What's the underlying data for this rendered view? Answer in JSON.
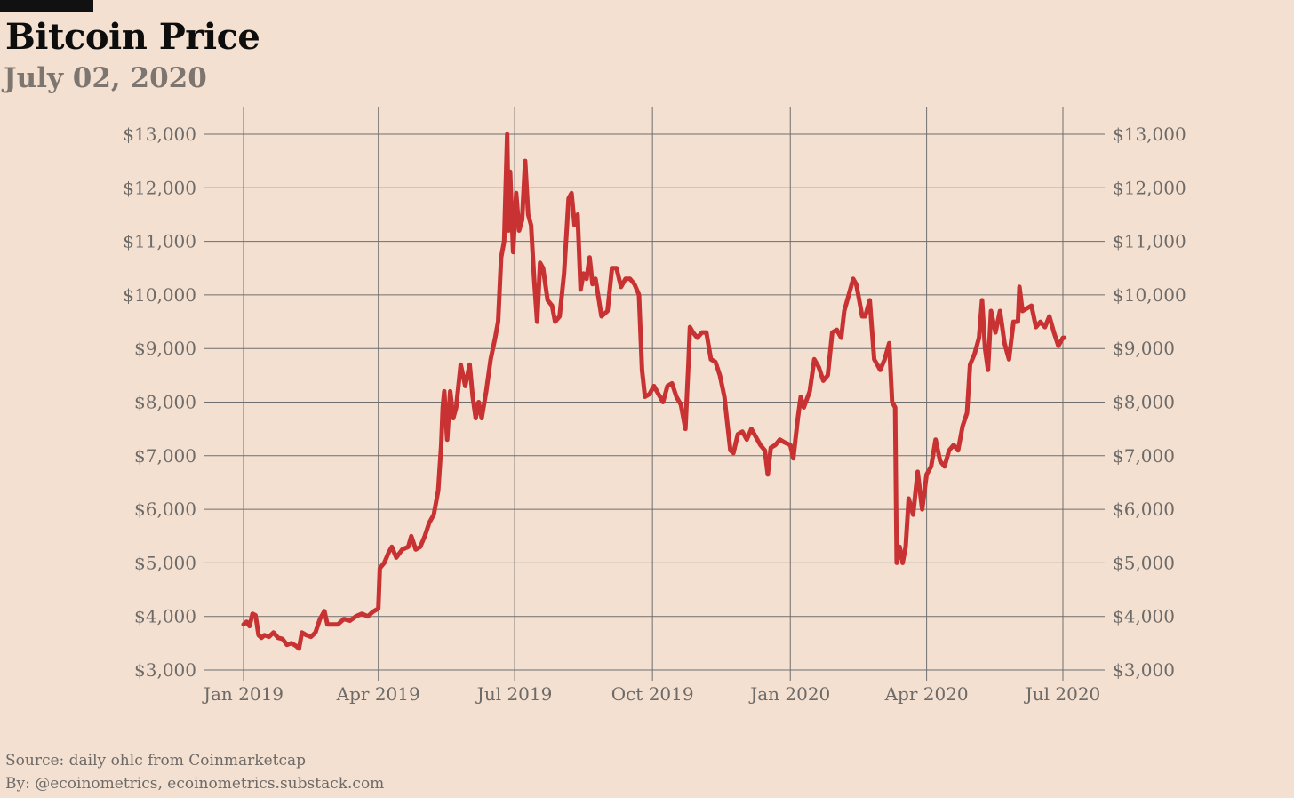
{
  "title": "Bitcoin Price",
  "subtitle": "July 02, 2020",
  "footer": {
    "source": "Source: daily ohlc from Coinmarketcap",
    "byline": "By: @ecoinometrics, ecoinometrics.substack.com"
  },
  "colors": {
    "background": "#f3e0d1",
    "line": "#c83232",
    "grid": "#6e6e6e",
    "title": "#0d0d0d",
    "subtitle": "#7d7670",
    "axis_text": "#6d6a67"
  },
  "chart_data": {
    "type": "line",
    "title": "Bitcoin Price",
    "subtitle": "July 02, 2020",
    "xlabel": "",
    "ylabel": "",
    "grid": true,
    "y_axis_sides": "left-and-right",
    "ylim": [
      3000,
      13000
    ],
    "xlim": [
      "2019-01-01",
      "2020-07-02"
    ],
    "y_ticks": [
      3000,
      4000,
      5000,
      6000,
      7000,
      8000,
      9000,
      10000,
      11000,
      12000,
      13000
    ],
    "y_tick_labels": [
      "$3,000",
      "$4,000",
      "$5,000",
      "$6,000",
      "$7,000",
      "$8,000",
      "$9,000",
      "$10,000",
      "$11,000",
      "$12,000",
      "$13,000"
    ],
    "x_ticks": [
      "2019-01-01",
      "2019-04-01",
      "2019-07-01",
      "2019-10-01",
      "2020-01-01",
      "2020-04-01",
      "2020-07-01"
    ],
    "x_tick_labels": [
      "Jan 2019",
      "Apr 2019",
      "Jul 2019",
      "Oct 2019",
      "Jan 2020",
      "Apr 2020",
      "Jul 2020"
    ],
    "series": [
      {
        "name": "",
        "color": "#c83232",
        "points": [
          [
            "2019-01-01",
            3850
          ],
          [
            "2019-01-03",
            3900
          ],
          [
            "2019-01-05",
            3820
          ],
          [
            "2019-01-07",
            4050
          ],
          [
            "2019-01-09",
            4020
          ],
          [
            "2019-01-11",
            3650
          ],
          [
            "2019-01-13",
            3600
          ],
          [
            "2019-01-15",
            3650
          ],
          [
            "2019-01-18",
            3620
          ],
          [
            "2019-01-21",
            3700
          ],
          [
            "2019-01-24",
            3600
          ],
          [
            "2019-01-27",
            3580
          ],
          [
            "2019-01-30",
            3470
          ],
          [
            "2019-02-02",
            3500
          ],
          [
            "2019-02-05",
            3450
          ],
          [
            "2019-02-07",
            3400
          ],
          [
            "2019-02-09",
            3700
          ],
          [
            "2019-02-12",
            3650
          ],
          [
            "2019-02-15",
            3620
          ],
          [
            "2019-02-18",
            3700
          ],
          [
            "2019-02-21",
            3950
          ],
          [
            "2019-02-24",
            4100
          ],
          [
            "2019-02-26",
            3850
          ],
          [
            "2019-03-01",
            3850
          ],
          [
            "2019-03-05",
            3850
          ],
          [
            "2019-03-09",
            3950
          ],
          [
            "2019-03-13",
            3920
          ],
          [
            "2019-03-17",
            4000
          ],
          [
            "2019-03-21",
            4050
          ],
          [
            "2019-03-25",
            4000
          ],
          [
            "2019-03-28",
            4080
          ],
          [
            "2019-04-01",
            4150
          ],
          [
            "2019-04-02",
            4900
          ],
          [
            "2019-04-05",
            5000
          ],
          [
            "2019-04-08",
            5200
          ],
          [
            "2019-04-10",
            5300
          ],
          [
            "2019-04-13",
            5100
          ],
          [
            "2019-04-17",
            5250
          ],
          [
            "2019-04-21",
            5300
          ],
          [
            "2019-04-23",
            5500
          ],
          [
            "2019-04-26",
            5250
          ],
          [
            "2019-04-29",
            5300
          ],
          [
            "2019-05-02",
            5500
          ],
          [
            "2019-05-05",
            5750
          ],
          [
            "2019-05-08",
            5900
          ],
          [
            "2019-05-11",
            6350
          ],
          [
            "2019-05-13",
            7200
          ],
          [
            "2019-05-14",
            7900
          ],
          [
            "2019-05-15",
            8200
          ],
          [
            "2019-05-17",
            7300
          ],
          [
            "2019-05-19",
            8200
          ],
          [
            "2019-05-21",
            7700
          ],
          [
            "2019-05-23",
            7900
          ],
          [
            "2019-05-26",
            8700
          ],
          [
            "2019-05-29",
            8300
          ],
          [
            "2019-06-01",
            8700
          ],
          [
            "2019-06-03",
            8100
          ],
          [
            "2019-06-05",
            7700
          ],
          [
            "2019-06-07",
            8000
          ],
          [
            "2019-06-09",
            7700
          ],
          [
            "2019-06-12",
            8200
          ],
          [
            "2019-06-15",
            8800
          ],
          [
            "2019-06-18",
            9200
          ],
          [
            "2019-06-20",
            9500
          ],
          [
            "2019-06-22",
            10700
          ],
          [
            "2019-06-24",
            11000
          ],
          [
            "2019-06-26",
            13000
          ],
          [
            "2019-06-27",
            11200
          ],
          [
            "2019-06-28",
            12300
          ],
          [
            "2019-06-30",
            10800
          ],
          [
            "2019-07-02",
            11900
          ],
          [
            "2019-07-04",
            11200
          ],
          [
            "2019-07-06",
            11400
          ],
          [
            "2019-07-08",
            12500
          ],
          [
            "2019-07-10",
            11500
          ],
          [
            "2019-07-12",
            11300
          ],
          [
            "2019-07-14",
            10300
          ],
          [
            "2019-07-16",
            9500
          ],
          [
            "2019-07-18",
            10600
          ],
          [
            "2019-07-20",
            10500
          ],
          [
            "2019-07-23",
            9900
          ],
          [
            "2019-07-26",
            9800
          ],
          [
            "2019-07-28",
            9500
          ],
          [
            "2019-07-31",
            9600
          ],
          [
            "2019-08-03",
            10400
          ],
          [
            "2019-08-06",
            11800
          ],
          [
            "2019-08-08",
            11900
          ],
          [
            "2019-08-10",
            11300
          ],
          [
            "2019-08-12",
            11500
          ],
          [
            "2019-08-14",
            10100
          ],
          [
            "2019-08-16",
            10400
          ],
          [
            "2019-08-18",
            10300
          ],
          [
            "2019-08-20",
            10700
          ],
          [
            "2019-08-22",
            10200
          ],
          [
            "2019-08-24",
            10300
          ],
          [
            "2019-08-28",
            9600
          ],
          [
            "2019-09-01",
            9700
          ],
          [
            "2019-09-04",
            10500
          ],
          [
            "2019-09-07",
            10500
          ],
          [
            "2019-09-10",
            10150
          ],
          [
            "2019-09-13",
            10300
          ],
          [
            "2019-09-16",
            10300
          ],
          [
            "2019-09-19",
            10200
          ],
          [
            "2019-09-22",
            10000
          ],
          [
            "2019-09-24",
            8600
          ],
          [
            "2019-09-26",
            8100
          ],
          [
            "2019-09-29",
            8150
          ],
          [
            "2019-10-02",
            8300
          ],
          [
            "2019-10-05",
            8150
          ],
          [
            "2019-10-08",
            8000
          ],
          [
            "2019-10-11",
            8300
          ],
          [
            "2019-10-14",
            8350
          ],
          [
            "2019-10-17",
            8100
          ],
          [
            "2019-10-20",
            7950
          ],
          [
            "2019-10-23",
            7500
          ],
          [
            "2019-10-25",
            8700
          ],
          [
            "2019-10-26",
            9400
          ],
          [
            "2019-10-28",
            9300
          ],
          [
            "2019-10-31",
            9200
          ],
          [
            "2019-11-03",
            9300
          ],
          [
            "2019-11-06",
            9300
          ],
          [
            "2019-11-09",
            8800
          ],
          [
            "2019-11-12",
            8750
          ],
          [
            "2019-11-15",
            8500
          ],
          [
            "2019-11-18",
            8100
          ],
          [
            "2019-11-20",
            7600
          ],
          [
            "2019-11-22",
            7100
          ],
          [
            "2019-11-24",
            7050
          ],
          [
            "2019-11-27",
            7400
          ],
          [
            "2019-11-30",
            7450
          ],
          [
            "2019-12-03",
            7300
          ],
          [
            "2019-12-06",
            7500
          ],
          [
            "2019-12-09",
            7350
          ],
          [
            "2019-12-12",
            7200
          ],
          [
            "2019-12-15",
            7100
          ],
          [
            "2019-12-17",
            6650
          ],
          [
            "2019-12-19",
            7150
          ],
          [
            "2019-12-22",
            7200
          ],
          [
            "2019-12-25",
            7300
          ],
          [
            "2019-12-28",
            7250
          ],
          [
            "2020-01-01",
            7200
          ],
          [
            "2020-01-03",
            6950
          ],
          [
            "2020-01-06",
            7700
          ],
          [
            "2020-01-08",
            8100
          ],
          [
            "2020-01-10",
            7900
          ],
          [
            "2020-01-14",
            8200
          ],
          [
            "2020-01-17",
            8800
          ],
          [
            "2020-01-20",
            8650
          ],
          [
            "2020-01-23",
            8400
          ],
          [
            "2020-01-26",
            8500
          ],
          [
            "2020-01-29",
            9300
          ],
          [
            "2020-02-01",
            9350
          ],
          [
            "2020-02-04",
            9200
          ],
          [
            "2020-02-06",
            9700
          ],
          [
            "2020-02-09",
            10000
          ],
          [
            "2020-02-12",
            10300
          ],
          [
            "2020-02-14",
            10200
          ],
          [
            "2020-02-16",
            9900
          ],
          [
            "2020-02-18",
            9600
          ],
          [
            "2020-02-20",
            9600
          ],
          [
            "2020-02-23",
            9900
          ],
          [
            "2020-02-26",
            8800
          ],
          [
            "2020-03-01",
            8600
          ],
          [
            "2020-03-04",
            8800
          ],
          [
            "2020-03-07",
            9100
          ],
          [
            "2020-03-09",
            8000
          ],
          [
            "2020-03-11",
            7900
          ],
          [
            "2020-03-12",
            5000
          ],
          [
            "2020-03-14",
            5300
          ],
          [
            "2020-03-16",
            5000
          ],
          [
            "2020-03-18",
            5300
          ],
          [
            "2020-03-20",
            6200
          ],
          [
            "2020-03-23",
            5900
          ],
          [
            "2020-03-26",
            6700
          ],
          [
            "2020-03-29",
            6000
          ],
          [
            "2020-04-01",
            6650
          ],
          [
            "2020-04-04",
            6800
          ],
          [
            "2020-04-07",
            7300
          ],
          [
            "2020-04-10",
            6900
          ],
          [
            "2020-04-13",
            6800
          ],
          [
            "2020-04-16",
            7100
          ],
          [
            "2020-04-19",
            7200
          ],
          [
            "2020-04-22",
            7100
          ],
          [
            "2020-04-25",
            7550
          ],
          [
            "2020-04-28",
            7800
          ],
          [
            "2020-04-30",
            8700
          ],
          [
            "2020-05-03",
            8900
          ],
          [
            "2020-05-06",
            9200
          ],
          [
            "2020-05-08",
            9900
          ],
          [
            "2020-05-10",
            9000
          ],
          [
            "2020-05-12",
            8600
          ],
          [
            "2020-05-14",
            9700
          ],
          [
            "2020-05-17",
            9300
          ],
          [
            "2020-05-20",
            9700
          ],
          [
            "2020-05-23",
            9100
          ],
          [
            "2020-05-26",
            8800
          ],
          [
            "2020-05-29",
            9500
          ],
          [
            "2020-06-01",
            9500
          ],
          [
            "2020-06-02",
            10150
          ],
          [
            "2020-06-04",
            9700
          ],
          [
            "2020-06-07",
            9750
          ],
          [
            "2020-06-10",
            9800
          ],
          [
            "2020-06-13",
            9400
          ],
          [
            "2020-06-16",
            9500
          ],
          [
            "2020-06-19",
            9400
          ],
          [
            "2020-06-22",
            9600
          ],
          [
            "2020-06-25",
            9300
          ],
          [
            "2020-06-28",
            9050
          ],
          [
            "2020-07-01",
            9200
          ],
          [
            "2020-07-02",
            9200
          ]
        ]
      }
    ]
  }
}
